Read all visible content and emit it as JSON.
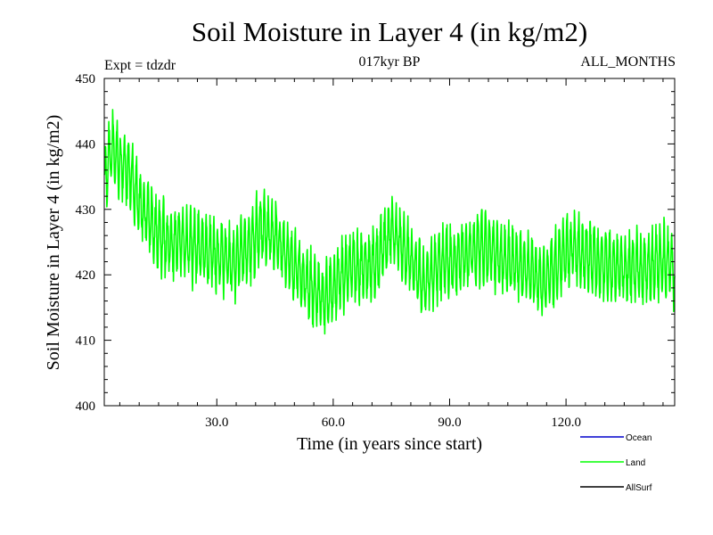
{
  "chart_data": {
    "type": "line",
    "title": "Soil Moisture in Layer 4 (in kg/m2)",
    "subtitle_left": "Expt = tdzdr",
    "subtitle_center": "017kyr BP",
    "subtitle_right": "ALL_MONTHS",
    "xlabel": "Time (in years since start)",
    "ylabel": "Soil Moisture in Layer 4 (in kg/m2)",
    "xlim": [
      1,
      148
    ],
    "ylim": [
      400,
      450
    ],
    "x_ticks": [
      30,
      60,
      90,
      120
    ],
    "x_tick_labels": [
      "30.0",
      "60.0",
      "90.0",
      "120.0"
    ],
    "y_ticks": [
      400,
      410,
      420,
      430,
      440,
      450
    ],
    "y_tick_labels": [
      "400",
      "410",
      "420",
      "430",
      "440",
      "450"
    ],
    "samples_per_year": 12,
    "seasonal_amplitude": 4.5,
    "trend": [
      [
        1,
        434
      ],
      [
        3,
        440
      ],
      [
        5,
        437
      ],
      [
        8,
        435
      ],
      [
        10,
        431
      ],
      [
        14,
        427
      ],
      [
        18,
        425
      ],
      [
        22,
        425
      ],
      [
        26,
        424
      ],
      [
        30,
        423
      ],
      [
        34,
        422
      ],
      [
        38,
        424
      ],
      [
        41,
        427
      ],
      [
        44,
        426
      ],
      [
        47,
        424
      ],
      [
        50,
        421
      ],
      [
        54,
        418
      ],
      [
        58,
        416
      ],
      [
        61,
        419
      ],
      [
        64,
        421
      ],
      [
        67,
        421
      ],
      [
        70,
        421
      ],
      [
        73,
        424
      ],
      [
        75,
        427
      ],
      [
        77,
        425
      ],
      [
        80,
        422
      ],
      [
        83,
        419
      ],
      [
        86,
        421
      ],
      [
        90,
        422
      ],
      [
        94,
        423
      ],
      [
        98,
        424
      ],
      [
        102,
        423
      ],
      [
        106,
        422
      ],
      [
        110,
        421
      ],
      [
        114,
        419
      ],
      [
        118,
        422
      ],
      [
        121,
        424
      ],
      [
        125,
        423
      ],
      [
        129,
        422
      ],
      [
        133,
        421
      ],
      [
        137,
        421
      ],
      [
        141,
        421
      ],
      [
        145,
        422
      ],
      [
        148,
        421
      ]
    ],
    "series": [
      {
        "name": "Ocean",
        "color": "#0000cc"
      },
      {
        "name": "Land",
        "color": "#00ff00"
      },
      {
        "name": "AllSurf",
        "color": "#000000"
      }
    ],
    "plotted_series": "Land",
    "legend_position": "bottom-right"
  }
}
